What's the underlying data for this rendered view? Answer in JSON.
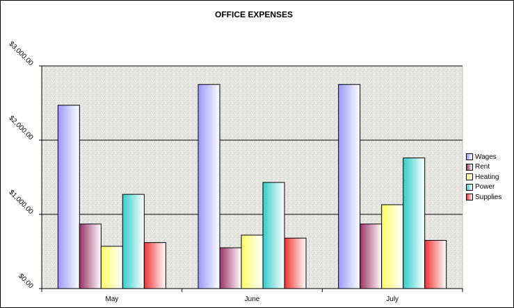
{
  "chart_data": {
    "type": "bar",
    "title": "OFFICE EXPENSES",
    "xlabel": "",
    "ylabel": "",
    "categories": [
      "May",
      "June",
      "July"
    ],
    "ylim": [
      0,
      3000
    ],
    "yticks": [
      "$0.00",
      "$1,000.00",
      "$2,000.00",
      "$3,000.00"
    ],
    "ytick_values": [
      0,
      1000,
      2000,
      3000
    ],
    "grid": true,
    "legend_position": "right",
    "plot_background": "textured-gray",
    "series": [
      {
        "name": "Wages",
        "values": [
          2470,
          2750,
          2750
        ],
        "color": "#9999ff"
      },
      {
        "name": "Rent",
        "values": [
          870,
          550,
          870
        ],
        "color": "#993366"
      },
      {
        "name": "Heating",
        "values": [
          570,
          720,
          1130
        ],
        "color": "#ffff66"
      },
      {
        "name": "Power",
        "values": [
          1270,
          1430,
          1760
        ],
        "color": "#33cccc"
      },
      {
        "name": "Supplies",
        "values": [
          620,
          680,
          650
        ],
        "color": "#ee3333"
      }
    ]
  }
}
